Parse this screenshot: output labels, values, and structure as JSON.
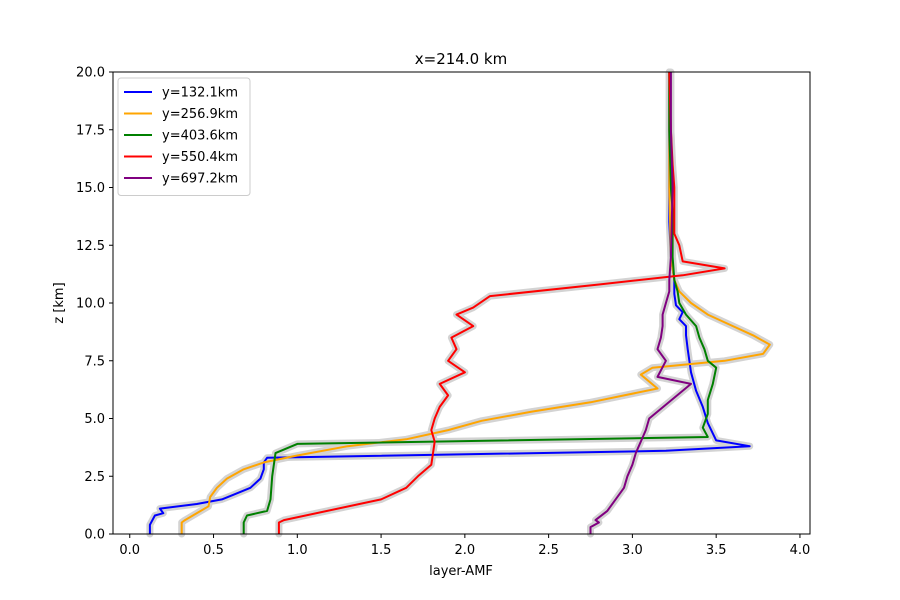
{
  "chart_data": {
    "type": "line",
    "title": "x=214.0 km",
    "xlabel": "layer-AMF",
    "ylabel": "z [km]",
    "xlim": [
      -0.1,
      4.06
    ],
    "ylim": [
      0,
      20
    ],
    "xticks": [
      "0.0",
      "0.5",
      "1.0",
      "1.5",
      "2.0",
      "2.5",
      "3.0",
      "3.5",
      "4.0"
    ],
    "yticks": [
      "0.0",
      "2.5",
      "5.0",
      "7.5",
      "10.0",
      "12.5",
      "15.0",
      "17.5",
      "20.0"
    ],
    "legend_position": "upper-left",
    "grid": false,
    "uncertainty_band_color": "#d3d3d3",
    "series": [
      {
        "name": "y=132.1km",
        "color": "#0000ff",
        "x": [
          0.12,
          0.12,
          0.15,
          0.2,
          0.18,
          0.4,
          0.55,
          0.62,
          0.72,
          0.78,
          0.8,
          0.8,
          0.82,
          3.2,
          3.7,
          3.5,
          3.45,
          3.42,
          3.38,
          3.35,
          3.33,
          3.32,
          3.32,
          3.28,
          3.3,
          3.26,
          3.25,
          3.25,
          3.23,
          3.22,
          3.22,
          3.22,
          3.22
        ],
        "y": [
          0.0,
          0.4,
          0.8,
          0.9,
          1.1,
          1.3,
          1.5,
          1.7,
          2.0,
          2.4,
          2.8,
          3.1,
          3.3,
          3.6,
          3.8,
          4.05,
          4.8,
          5.5,
          6.2,
          7.0,
          8.0,
          8.6,
          9.0,
          9.3,
          9.6,
          9.9,
          10.4,
          11.0,
          12.0,
          13.5,
          15.0,
          17.5,
          20.0
        ]
      },
      {
        "name": "y=256.9km",
        "color": "#ffa500",
        "x": [
          0.31,
          0.31,
          0.33,
          0.47,
          0.48,
          0.52,
          0.58,
          0.68,
          0.8,
          1.0,
          1.3,
          1.65,
          1.9,
          2.1,
          2.4,
          2.75,
          2.95,
          3.15,
          3.05,
          3.12,
          3.55,
          3.78,
          3.82,
          3.72,
          3.6,
          3.45,
          3.35,
          3.28,
          3.25,
          3.23,
          3.22,
          3.22,
          3.22
        ],
        "y": [
          0.0,
          0.5,
          0.6,
          1.2,
          1.6,
          2.0,
          2.4,
          2.8,
          3.1,
          3.4,
          3.8,
          4.1,
          4.5,
          4.9,
          5.3,
          5.7,
          6.0,
          6.3,
          6.9,
          7.2,
          7.5,
          7.8,
          8.2,
          8.6,
          9.0,
          9.5,
          10.0,
          10.5,
          11.0,
          12.0,
          15.0,
          17.5,
          20.0
        ]
      },
      {
        "name": "y=403.6km",
        "color": "#008000",
        "x": [
          0.68,
          0.68,
          0.7,
          0.82,
          0.84,
          0.85,
          0.87,
          1.0,
          3.45,
          3.42,
          3.45,
          3.45,
          3.48,
          3.5,
          3.45,
          3.43,
          3.4,
          3.38,
          3.32,
          3.28,
          3.27,
          3.25,
          3.24,
          3.24,
          3.24,
          3.23,
          3.22,
          3.22
        ],
        "y": [
          0.0,
          0.5,
          0.8,
          1.0,
          1.5,
          2.5,
          3.5,
          3.9,
          4.2,
          4.6,
          5.2,
          5.8,
          6.5,
          7.2,
          7.5,
          8.0,
          8.5,
          9.0,
          9.5,
          10.0,
          10.5,
          11.0,
          12.0,
          13.0,
          14.0,
          15.0,
          17.5,
          20.0
        ]
      },
      {
        "name": "y=550.4km",
        "color": "#ff0000",
        "x": [
          0.89,
          0.89,
          0.92,
          1.5,
          1.65,
          1.72,
          1.8,
          1.82,
          1.8,
          1.82,
          1.85,
          1.9,
          1.85,
          2.0,
          1.9,
          1.95,
          1.92,
          2.05,
          1.95,
          2.05,
          2.15,
          2.8,
          3.3,
          3.55,
          3.3,
          3.28,
          3.25,
          3.25,
          3.25,
          3.24,
          3.23,
          3.22
        ],
        "y": [
          0.0,
          0.5,
          0.6,
          1.5,
          2.0,
          2.5,
          3.0,
          4.0,
          4.5,
          5.0,
          5.5,
          6.0,
          6.5,
          7.0,
          7.5,
          8.0,
          8.5,
          9.0,
          9.5,
          9.8,
          10.3,
          10.8,
          11.2,
          11.5,
          11.8,
          12.5,
          13.0,
          14.0,
          15.0,
          16.0,
          17.5,
          20.0
        ]
      },
      {
        "name": "y=697.2km",
        "color": "#800080",
        "x": [
          2.75,
          2.75,
          2.8,
          2.78,
          2.85,
          2.9,
          2.95,
          2.97,
          3.0,
          3.02,
          3.05,
          3.08,
          3.1,
          3.35,
          3.15,
          3.2,
          3.15,
          3.17,
          3.18,
          3.18,
          3.2,
          3.22,
          3.22,
          3.23,
          3.24,
          3.23,
          3.23
        ],
        "y": [
          0.0,
          0.3,
          0.5,
          0.6,
          1.0,
          1.5,
          2.0,
          2.5,
          3.0,
          3.5,
          4.0,
          4.5,
          5.0,
          6.5,
          6.8,
          7.5,
          8.0,
          8.5,
          9.0,
          9.5,
          10.0,
          10.5,
          11.0,
          12.0,
          15.0,
          17.5,
          20.0
        ]
      }
    ]
  }
}
